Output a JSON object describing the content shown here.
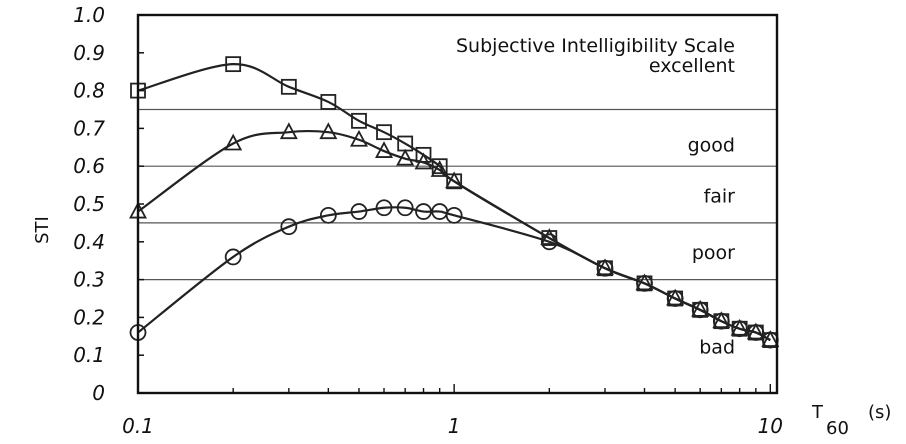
{
  "chart_data": {
    "type": "line",
    "xlabel": "T",
    "xlabel_sub": "60",
    "xlabel_unit": "(s)",
    "ylabel": "STI",
    "xscale": "log",
    "xlim": [
      0.1,
      10.5
    ],
    "ylim": [
      0,
      1.0
    ],
    "x_tick_labels": [
      "0.1",
      "1",
      "10"
    ],
    "y_tick_labels": [
      "0",
      "0.1",
      "0.2",
      "0.3",
      "0.4",
      "0.5",
      "0.6",
      "0.7",
      "0.8",
      "0.9",
      "1.0"
    ],
    "scale_title": "Subjective Intelligibility Scale",
    "bands": {
      "boundaries": [
        0.3,
        0.45,
        0.6,
        0.75
      ],
      "labels": [
        {
          "text": "excellent",
          "y": 0.865
        },
        {
          "text": "good",
          "y": 0.655
        },
        {
          "text": "fair",
          "y": 0.52
        },
        {
          "text": "poor",
          "y": 0.37
        },
        {
          "text": "bad",
          "y": 0.12
        }
      ]
    },
    "series": [
      {
        "marker": "square",
        "x": [
          0.1,
          0.2,
          0.3,
          0.4,
          0.5,
          0.6,
          0.7,
          0.8,
          0.9,
          1.0,
          2.0,
          3.0,
          4.0,
          5.0,
          6.0,
          7.0,
          8.0,
          9.0,
          10.0
        ],
        "y": [
          0.8,
          0.87,
          0.81,
          0.77,
          0.72,
          0.69,
          0.66,
          0.63,
          0.6,
          0.56,
          0.41,
          0.33,
          0.29,
          0.25,
          0.22,
          0.19,
          0.17,
          0.16,
          0.14
        ]
      },
      {
        "marker": "triangle",
        "x": [
          0.1,
          0.2,
          0.3,
          0.4,
          0.5,
          0.6,
          0.7,
          0.8,
          0.9,
          1.0,
          2.0,
          3.0,
          4.0,
          5.0,
          6.0,
          7.0,
          8.0,
          9.0,
          10.0
        ],
        "y": [
          0.48,
          0.66,
          0.69,
          0.69,
          0.67,
          0.64,
          0.62,
          0.61,
          0.59,
          0.56,
          0.41,
          0.33,
          0.29,
          0.25,
          0.22,
          0.19,
          0.17,
          0.16,
          0.14
        ]
      },
      {
        "marker": "circle",
        "x": [
          0.1,
          0.2,
          0.3,
          0.4,
          0.5,
          0.6,
          0.7,
          0.8,
          0.9,
          1.0,
          2.0,
          3.0,
          4.0,
          5.0,
          6.0,
          7.0,
          8.0,
          9.0,
          10.0
        ],
        "y": [
          0.16,
          0.36,
          0.44,
          0.47,
          0.48,
          0.49,
          0.49,
          0.48,
          0.48,
          0.47,
          0.4,
          0.33,
          0.29,
          0.25,
          0.22,
          0.19,
          0.17,
          0.16,
          0.14
        ]
      }
    ],
    "grid": false,
    "legend": "none"
  }
}
